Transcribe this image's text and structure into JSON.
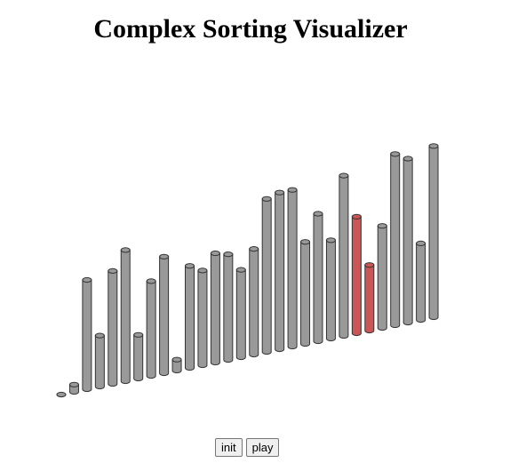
{
  "header": {
    "title": "Complex Sorting Visualizer"
  },
  "controls": {
    "init_label": "init",
    "play_label": "play"
  },
  "colors": {
    "bar": "#999999",
    "highlight": "#cc5555",
    "stroke": "#333333"
  },
  "chart_data": {
    "type": "bar",
    "values": [
      0,
      2,
      30,
      14,
      31,
      36,
      12,
      26,
      32,
      3,
      28,
      26,
      30,
      29,
      24,
      29,
      42,
      43,
      43,
      28,
      35,
      27,
      44,
      32,
      18,
      28,
      47,
      45,
      21,
      47
    ],
    "highlighted_indices": [
      23,
      24
    ],
    "ylim": [
      0,
      50
    ]
  }
}
